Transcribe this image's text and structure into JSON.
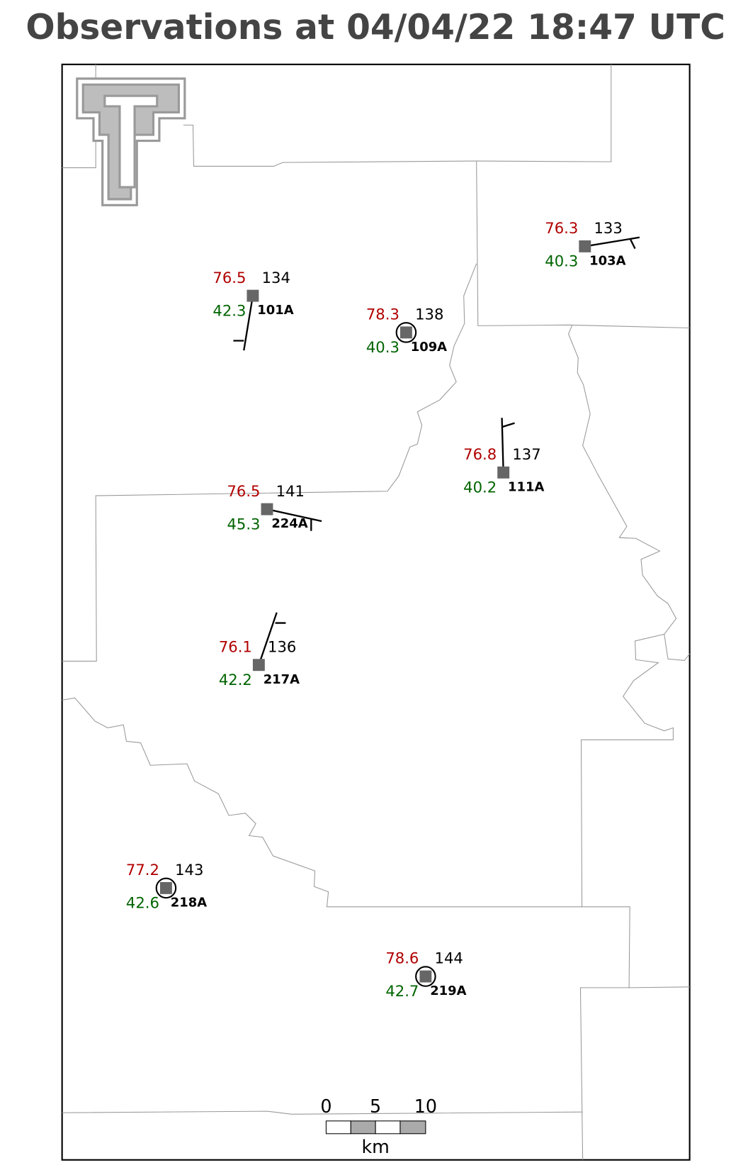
{
  "title": "Observations at 04/04/22 18:47 UTC",
  "stations": [
    {
      "id": "103A",
      "temperature": "76.3",
      "dewpoint": "40.3",
      "pressure": "133"
    },
    {
      "id": "101A",
      "temperature": "76.5",
      "dewpoint": "42.3",
      "pressure": "134"
    },
    {
      "id": "109A",
      "temperature": "78.3",
      "dewpoint": "40.3",
      "pressure": "138"
    },
    {
      "id": "111A",
      "temperature": "76.8",
      "dewpoint": "40.2",
      "pressure": "137"
    },
    {
      "id": "224A",
      "temperature": "76.5",
      "dewpoint": "45.3",
      "pressure": "141"
    },
    {
      "id": "217A",
      "temperature": "76.1",
      "dewpoint": "42.2",
      "pressure": "136"
    },
    {
      "id": "218A",
      "temperature": "77.2",
      "dewpoint": "42.6",
      "pressure": "143"
    },
    {
      "id": "219A",
      "temperature": "78.6",
      "dewpoint": "42.7",
      "pressure": "144"
    }
  ],
  "scale_bar": {
    "ticks": [
      "0",
      "5",
      "10"
    ],
    "unit": "km"
  }
}
